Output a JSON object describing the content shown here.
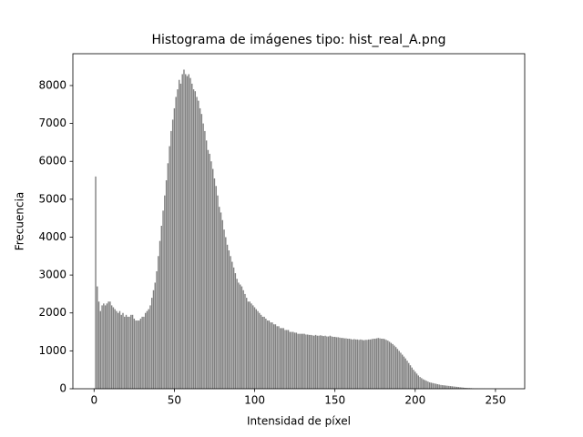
{
  "chart_data": {
    "type": "bar",
    "title": "Histograma de imágenes tipo: hist_real_A.png",
    "x_label": "Intensidad de píxel",
    "y_label": "Frecuencia",
    "color": "#808080",
    "bar_width": 0.8,
    "x": [
      0,
      1,
      2,
      3,
      4,
      5,
      6,
      7,
      8,
      9,
      10,
      11,
      12,
      13,
      14,
      15,
      16,
      17,
      18,
      19,
      20,
      21,
      22,
      23,
      24,
      25,
      26,
      27,
      28,
      29,
      30,
      31,
      32,
      33,
      34,
      35,
      36,
      37,
      38,
      39,
      40,
      41,
      42,
      43,
      44,
      45,
      46,
      47,
      48,
      49,
      50,
      51,
      52,
      53,
      54,
      55,
      56,
      57,
      58,
      59,
      60,
      61,
      62,
      63,
      64,
      65,
      66,
      67,
      68,
      69,
      70,
      71,
      72,
      73,
      74,
      75,
      76,
      77,
      78,
      79,
      80,
      81,
      82,
      83,
      84,
      85,
      86,
      87,
      88,
      89,
      90,
      91,
      92,
      93,
      94,
      95,
      96,
      97,
      98,
      99,
      100,
      101,
      102,
      103,
      104,
      105,
      106,
      107,
      108,
      109,
      110,
      111,
      112,
      113,
      114,
      115,
      116,
      117,
      118,
      119,
      120,
      121,
      122,
      123,
      124,
      125,
      126,
      127,
      128,
      129,
      130,
      131,
      132,
      133,
      134,
      135,
      136,
      137,
      138,
      139,
      140,
      141,
      142,
      143,
      144,
      145,
      146,
      147,
      148,
      149,
      150,
      151,
      152,
      153,
      154,
      155,
      156,
      157,
      158,
      159,
      160,
      161,
      162,
      163,
      164,
      165,
      166,
      167,
      168,
      169,
      170,
      171,
      172,
      173,
      174,
      175,
      176,
      177,
      178,
      179,
      180,
      181,
      182,
      183,
      184,
      185,
      186,
      187,
      188,
      189,
      190,
      191,
      192,
      193,
      194,
      195,
      196,
      197,
      198,
      199,
      200,
      201,
      202,
      203,
      204,
      205,
      206,
      207,
      208,
      209,
      210,
      211,
      212,
      213,
      214,
      215,
      216,
      217,
      218,
      219,
      220,
      221,
      222,
      223,
      224,
      225,
      226,
      227,
      228,
      229,
      230,
      231,
      232,
      233,
      234,
      235,
      236,
      237,
      238,
      239,
      240,
      241,
      242,
      243,
      244,
      245,
      246,
      247,
      248,
      249,
      250,
      251,
      252,
      253,
      254,
      255
    ],
    "values": [
      0,
      5600,
      2700,
      2300,
      2050,
      2200,
      2250,
      2200,
      2250,
      2300,
      2300,
      2200,
      2150,
      2100,
      2050,
      2000,
      2050,
      1950,
      2000,
      1900,
      1950,
      1900,
      1900,
      1950,
      1950,
      1850,
      1800,
      1800,
      1800,
      1850,
      1900,
      1900,
      2000,
      2050,
      2100,
      2200,
      2400,
      2600,
      2800,
      3100,
      3500,
      3900,
      4300,
      4700,
      5100,
      5500,
      5950,
      6400,
      6800,
      7100,
      7400,
      7700,
      7900,
      8150,
      8050,
      8300,
      8420,
      8300,
      8250,
      8300,
      8200,
      8050,
      7900,
      7850,
      7700,
      7600,
      7400,
      7250,
      7000,
      6800,
      6550,
      6300,
      6200,
      6000,
      5800,
      5550,
      5350,
      5100,
      4800,
      4650,
      4450,
      4200,
      4000,
      3800,
      3650,
      3500,
      3350,
      3200,
      3050,
      2900,
      2800,
      2750,
      2700,
      2600,
      2500,
      2400,
      2300,
      2300,
      2250,
      2200,
      2150,
      2100,
      2050,
      2000,
      1950,
      1900,
      1900,
      1850,
      1800,
      1800,
      1750,
      1750,
      1700,
      1700,
      1650,
      1650,
      1600,
      1600,
      1600,
      1550,
      1550,
      1550,
      1500,
      1500,
      1500,
      1480,
      1480,
      1450,
      1450,
      1450,
      1450,
      1450,
      1430,
      1430,
      1420,
      1420,
      1410,
      1400,
      1420,
      1400,
      1400,
      1410,
      1400,
      1390,
      1400,
      1380,
      1380,
      1400,
      1380,
      1370,
      1370,
      1360,
      1360,
      1350,
      1340,
      1340,
      1330,
      1330,
      1320,
      1320,
      1310,
      1300,
      1310,
      1300,
      1300,
      1290,
      1300,
      1290,
      1280,
      1290,
      1290,
      1300,
      1300,
      1310,
      1320,
      1320,
      1330,
      1340,
      1330,
      1320,
      1320,
      1310,
      1290,
      1270,
      1240,
      1210,
      1180,
      1140,
      1100,
      1050,
      1000,
      950,
      900,
      850,
      800,
      740,
      680,
      620,
      560,
      500,
      450,
      400,
      350,
      310,
      280,
      250,
      230,
      210,
      190,
      170,
      160,
      150,
      140,
      130,
      120,
      110,
      100,
      95,
      90,
      85,
      80,
      75,
      70,
      65,
      60,
      55,
      50,
      45,
      40,
      35,
      30,
      25,
      22,
      20,
      18,
      15,
      12,
      10,
      8,
      6,
      5,
      4,
      3,
      3,
      2,
      2,
      1,
      1,
      1,
      0,
      0,
      0,
      0,
      0,
      0,
      0
    ],
    "xlim": [
      -13.2,
      268.2
    ],
    "ylim": [
      0,
      8840
    ],
    "xticks": [
      0,
      50,
      100,
      150,
      200,
      250
    ],
    "yticks": [
      0,
      1000,
      2000,
      3000,
      4000,
      5000,
      6000,
      7000,
      8000
    ],
    "grid": false
  }
}
